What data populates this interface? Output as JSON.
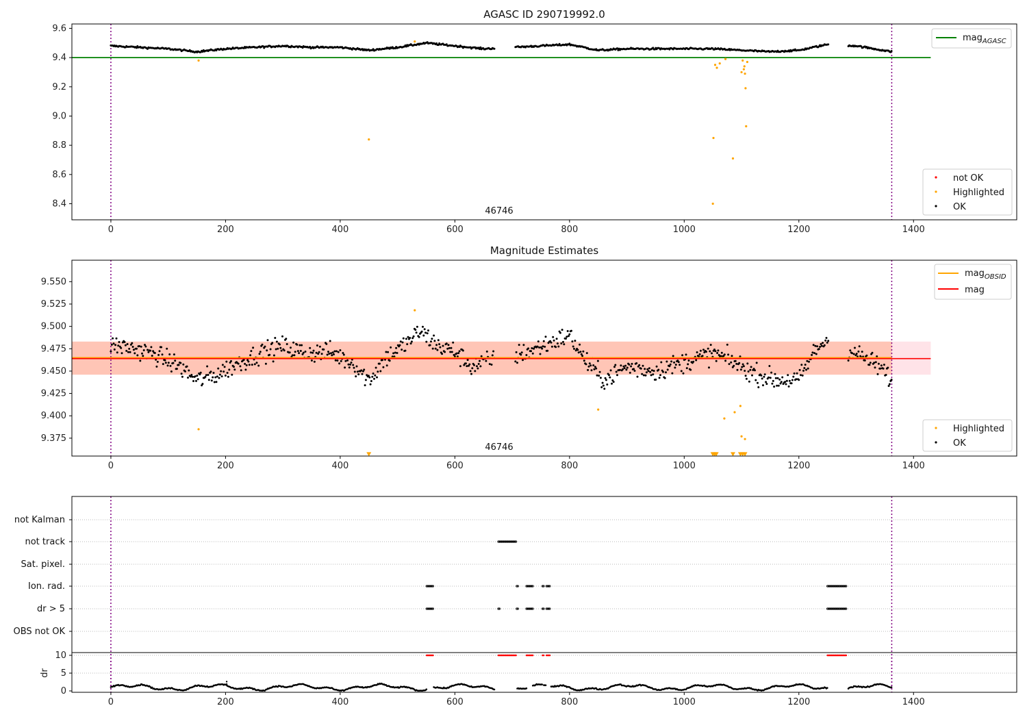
{
  "chart_data": [
    {
      "panel": "agasc",
      "type": "scatter",
      "title": "AGASC ID 290719992.0",
      "xlim": [
        -68,
        1580
      ],
      "ylim": [
        8.29,
        9.63
      ],
      "xticks": [
        0,
        200,
        400,
        600,
        800,
        1000,
        1200,
        1400
      ],
      "yticks": [
        8.4,
        8.6,
        8.8,
        9.0,
        9.2,
        9.4,
        9.6
      ],
      "ytick_labels": [
        "8.4",
        "8.6",
        "8.8",
        "9.0",
        "9.2",
        "9.4",
        "9.6"
      ],
      "obsid_label": "46746",
      "obsid_label_x": 680,
      "vlines": [
        0,
        1362
      ],
      "reference_line": {
        "name": "mag",
        "subscript": "AGASC",
        "value": 9.4,
        "x_range": [
          -68,
          1430
        ],
        "color": "#008000"
      },
      "ok_series": {
        "name": "OK",
        "color": "#000000",
        "segments": [
          [
            0,
            670
          ],
          [
            705,
            1252
          ],
          [
            1285,
            1362
          ]
        ],
        "profile": [
          [
            0,
            9.48
          ],
          [
            50,
            9.47
          ],
          [
            100,
            9.46
          ],
          [
            150,
            9.44
          ],
          [
            200,
            9.46
          ],
          [
            250,
            9.47
          ],
          [
            300,
            9.48
          ],
          [
            350,
            9.47
          ],
          [
            400,
            9.47
          ],
          [
            450,
            9.45
          ],
          [
            500,
            9.47
          ],
          [
            550,
            9.5
          ],
          [
            600,
            9.48
          ],
          [
            650,
            9.46
          ],
          [
            700,
            9.47
          ],
          [
            750,
            9.48
          ],
          [
            800,
            9.49
          ],
          [
            850,
            9.45
          ],
          [
            900,
            9.46
          ],
          [
            950,
            9.46
          ],
          [
            1000,
            9.46
          ],
          [
            1050,
            9.46
          ],
          [
            1100,
            9.45
          ],
          [
            1150,
            9.44
          ],
          [
            1200,
            9.45
          ],
          [
            1250,
            9.49
          ],
          [
            1300,
            9.48
          ],
          [
            1362,
            9.44
          ]
        ],
        "scatter": 0.012
      },
      "highlighted_series": {
        "name": "Highlighted",
        "color": "#FFA500",
        "points": [
          [
            153,
            9.38
          ],
          [
            450,
            8.84
          ],
          [
            1050,
            8.4
          ],
          [
            1051,
            8.85
          ],
          [
            1054,
            9.35
          ],
          [
            1057,
            9.33
          ],
          [
            1062,
            9.36
          ],
          [
            1072,
            9.39
          ],
          [
            1085,
            8.71
          ],
          [
            1100,
            9.3
          ],
          [
            1102,
            9.38
          ],
          [
            1104,
            9.32
          ],
          [
            1105,
            9.34
          ],
          [
            1106,
            9.29
          ],
          [
            1107,
            9.19
          ],
          [
            1108,
            8.93
          ],
          [
            1110,
            9.37
          ],
          [
            530,
            9.51
          ]
        ]
      },
      "legend_main": [
        {
          "label": "mag",
          "sub": "AGASC",
          "color": "#008000"
        }
      ],
      "legend_points": [
        {
          "label": "not OK",
          "color": "#FF0000"
        },
        {
          "label": "Highlighted",
          "color": "#FFA500"
        },
        {
          "label": "OK",
          "color": "#000000"
        }
      ]
    },
    {
      "panel": "estimates",
      "type": "scatter",
      "title": "Magnitude Estimates",
      "xlim": [
        -68,
        1580
      ],
      "ylim": [
        9.355,
        9.574
      ],
      "xticks": [
        0,
        200,
        400,
        600,
        800,
        1000,
        1200,
        1400
      ],
      "yticks": [
        9.375,
        9.4,
        9.425,
        9.45,
        9.475,
        9.5,
        9.525,
        9.55
      ],
      "ytick_labels": [
        "9.375",
        "9.400",
        "9.425",
        "9.450",
        "9.475",
        "9.500",
        "9.525",
        "9.550"
      ],
      "obsid_label": "46746",
      "obsid_label_x": 680,
      "vlines": [
        0,
        1362
      ],
      "mag_line": {
        "name": "mag",
        "value": 9.464,
        "color": "#FF0000",
        "x_range": [
          -68,
          1430
        ]
      },
      "mag_obsid_line": {
        "name": "mag",
        "subscript": "OBSID",
        "value": 9.465,
        "color": "#FFA500",
        "x_range": [
          -68,
          1362
        ]
      },
      "band_mag": {
        "low": 9.446,
        "high": 9.483,
        "x_range": [
          -68,
          1430
        ],
        "color": "#FFC0CB"
      },
      "band_obsid": {
        "low": 9.446,
        "high": 9.483,
        "x_range": [
          -68,
          1362
        ],
        "color": "#FFA07A"
      },
      "ok_series": {
        "name": "OK",
        "color": "#000000",
        "segments": [
          [
            0,
            670
          ],
          [
            705,
            1252
          ],
          [
            1285,
            1362
          ]
        ],
        "profile": [
          [
            0,
            9.48
          ],
          [
            40,
            9.475
          ],
          [
            80,
            9.468
          ],
          [
            120,
            9.455
          ],
          [
            150,
            9.44
          ],
          [
            180,
            9.445
          ],
          [
            220,
            9.458
          ],
          [
            260,
            9.47
          ],
          [
            300,
            9.478
          ],
          [
            340,
            9.47
          ],
          [
            380,
            9.472
          ],
          [
            420,
            9.46
          ],
          [
            450,
            9.44
          ],
          [
            480,
            9.465
          ],
          [
            510,
            9.478
          ],
          [
            540,
            9.495
          ],
          [
            570,
            9.478
          ],
          [
            600,
            9.472
          ],
          [
            630,
            9.455
          ],
          [
            660,
            9.462
          ],
          [
            720,
            9.47
          ],
          [
            760,
            9.48
          ],
          [
            800,
            9.49
          ],
          [
            830,
            9.46
          ],
          [
            860,
            9.44
          ],
          [
            900,
            9.455
          ],
          [
            950,
            9.45
          ],
          [
            1000,
            9.46
          ],
          [
            1050,
            9.47
          ],
          [
            1080,
            9.462
          ],
          [
            1120,
            9.448
          ],
          [
            1160,
            9.44
          ],
          [
            1200,
            9.44
          ],
          [
            1230,
            9.475
          ],
          [
            1250,
            9.485
          ],
          [
            1300,
            9.47
          ],
          [
            1340,
            9.455
          ],
          [
            1362,
            9.44
          ]
        ],
        "scatter": 0.022
      },
      "highlighted_series": {
        "name": "Highlighted",
        "color": "#FFA500",
        "points": [
          [
            153,
            9.385
          ],
          [
            850,
            9.407
          ],
          [
            1070,
            9.397
          ],
          [
            1088,
            9.404
          ],
          [
            1098,
            9.411
          ],
          [
            1100,
            9.377
          ],
          [
            1106,
            9.374
          ],
          [
            530,
            9.518
          ]
        ]
      },
      "off_scale_markers": [
        [
          450,
          9.357
        ],
        [
          1050,
          9.357
        ],
        [
          1053,
          9.357
        ],
        [
          1056,
          9.357
        ],
        [
          1085,
          9.357
        ],
        [
          1098,
          9.357
        ],
        [
          1102,
          9.357
        ],
        [
          1106,
          9.357
        ]
      ],
      "legend_main": [
        {
          "label": "mag",
          "sub": "OBSID",
          "color": "#FFA500"
        },
        {
          "label": "mag",
          "sub": "",
          "color": "#FF0000"
        }
      ],
      "legend_points": [
        {
          "label": "Highlighted",
          "color": "#FFA500"
        },
        {
          "label": "OK",
          "color": "#000000"
        }
      ]
    },
    {
      "panel": "flags",
      "type": "scatter",
      "xlim": [
        -68,
        1580
      ],
      "xticks": [
        0,
        200,
        400,
        600,
        800,
        1000,
        1200,
        1400
      ],
      "categories": [
        "not Kalman",
        "not track",
        "Sat. pixel.",
        "Ion. rad.",
        "dr > 5",
        "OBS not OK"
      ],
      "vlines": [
        0,
        1362
      ],
      "flag_spans": {
        "not track": [
          [
            676,
            708
          ]
        ],
        "Ion. rad.": [
          [
            551,
            563
          ],
          [
            708,
            710
          ],
          [
            725,
            736
          ],
          [
            753,
            755
          ],
          [
            760,
            767
          ],
          [
            1250,
            1284
          ]
        ],
        "dr > 5": [
          [
            551,
            563
          ],
          [
            676,
            678
          ],
          [
            708,
            710
          ],
          [
            725,
            736
          ],
          [
            753,
            755
          ],
          [
            760,
            767
          ],
          [
            1250,
            1284
          ]
        ]
      }
    },
    {
      "panel": "dr",
      "type": "scatter",
      "ylabel": "dr",
      "xlim": [
        -68,
        1580
      ],
      "ylim": [
        -0.5,
        11.5
      ],
      "xticks": [
        0,
        200,
        400,
        600,
        800,
        1000,
        1200,
        1400
      ],
      "xtick_labels": [
        "0",
        "200",
        "400",
        "600",
        "800",
        "1000",
        "1200",
        "1400"
      ],
      "yticks": [
        0,
        5,
        10
      ],
      "ytick_labels": [
        "0",
        "5",
        "10"
      ],
      "hline": 10,
      "vlines": [
        0,
        1362
      ],
      "segments": [
        [
          0,
          670
        ],
        [
          705,
          1252
        ],
        [
          1285,
          1362
        ]
      ],
      "red_spans": [
        [
          551,
          563
        ],
        [
          676,
          708
        ],
        [
          725,
          736
        ],
        [
          753,
          755
        ],
        [
          760,
          767
        ],
        [
          1250,
          1284
        ]
      ],
      "extra_points": [
        [
          202,
          2.6
        ],
        [
          202,
          1.9
        ]
      ]
    }
  ]
}
